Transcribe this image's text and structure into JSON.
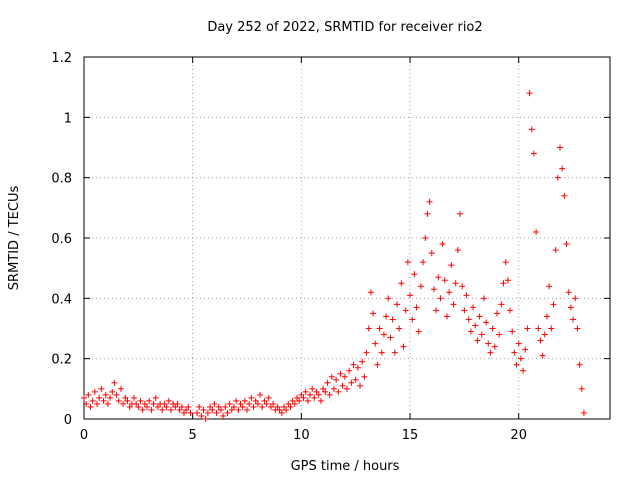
{
  "chart_data": {
    "type": "scatter",
    "title": "Day 252 of 2022, SRMTID for receiver rio2",
    "xlabel": "GPS time / hours",
    "ylabel": "SRMTID / TECUs",
    "xlim": [
      0,
      24.2
    ],
    "ylim": [
      0,
      1.2
    ],
    "x_ticks": [
      0,
      5,
      10,
      15,
      20
    ],
    "x_tick_labels": [
      "0",
      "5",
      "10",
      "15",
      "20"
    ],
    "y_ticks": [
      0,
      0.2,
      0.4,
      0.6,
      0.8,
      1.0,
      1.2
    ],
    "y_tick_labels": [
      "0",
      "0.2",
      "0.4",
      "0.6",
      "0.8",
      "1",
      "1.2"
    ],
    "grid": true,
    "marker": "+",
    "marker_color": "#ff0000",
    "series": [
      {
        "name": "SRMTID",
        "points": [
          [
            0.0,
            0.07
          ],
          [
            0.1,
            0.05
          ],
          [
            0.2,
            0.08
          ],
          [
            0.3,
            0.04
          ],
          [
            0.4,
            0.06
          ],
          [
            0.5,
            0.09
          ],
          [
            0.6,
            0.05
          ],
          [
            0.7,
            0.07
          ],
          [
            0.8,
            0.1
          ],
          [
            0.9,
            0.06
          ],
          [
            1.0,
            0.08
          ],
          [
            1.1,
            0.05
          ],
          [
            1.2,
            0.07
          ],
          [
            1.3,
            0.09
          ],
          [
            1.4,
            0.12
          ],
          [
            1.5,
            0.08
          ],
          [
            1.6,
            0.06
          ],
          [
            1.7,
            0.1
          ],
          [
            1.8,
            0.05
          ],
          [
            1.9,
            0.07
          ],
          [
            2.0,
            0.06
          ],
          [
            2.1,
            0.04
          ],
          [
            2.2,
            0.05
          ],
          [
            2.3,
            0.07
          ],
          [
            2.4,
            0.05
          ],
          [
            2.5,
            0.04
          ],
          [
            2.6,
            0.06
          ],
          [
            2.7,
            0.03
          ],
          [
            2.8,
            0.05
          ],
          [
            2.9,
            0.04
          ],
          [
            3.0,
            0.06
          ],
          [
            3.1,
            0.03
          ],
          [
            3.2,
            0.05
          ],
          [
            3.3,
            0.07
          ],
          [
            3.4,
            0.04
          ],
          [
            3.5,
            0.05
          ],
          [
            3.6,
            0.03
          ],
          [
            3.7,
            0.05
          ],
          [
            3.8,
            0.04
          ],
          [
            3.9,
            0.06
          ],
          [
            4.0,
            0.03
          ],
          [
            4.1,
            0.05
          ],
          [
            4.2,
            0.04
          ],
          [
            4.3,
            0.05
          ],
          [
            4.4,
            0.03
          ],
          [
            4.5,
            0.04
          ],
          [
            4.6,
            0.02
          ],
          [
            4.7,
            0.03
          ],
          [
            4.8,
            0.04
          ],
          [
            4.9,
            0.02
          ],
          [
            5.2,
            0.02
          ],
          [
            5.3,
            0.04
          ],
          [
            5.4,
            0.01
          ],
          [
            5.5,
            0.03
          ],
          [
            5.6,
            0.0
          ],
          [
            5.7,
            0.02
          ],
          [
            5.8,
            0.04
          ],
          [
            5.9,
            0.03
          ],
          [
            6.0,
            0.05
          ],
          [
            6.1,
            0.02
          ],
          [
            6.2,
            0.04
          ],
          [
            6.3,
            0.03
          ],
          [
            6.4,
            0.01
          ],
          [
            6.5,
            0.04
          ],
          [
            6.6,
            0.02
          ],
          [
            6.7,
            0.05
          ],
          [
            6.8,
            0.03
          ],
          [
            6.9,
            0.04
          ],
          [
            7.0,
            0.06
          ],
          [
            7.1,
            0.03
          ],
          [
            7.2,
            0.05
          ],
          [
            7.3,
            0.04
          ],
          [
            7.4,
            0.06
          ],
          [
            7.5,
            0.03
          ],
          [
            7.6,
            0.05
          ],
          [
            7.7,
            0.07
          ],
          [
            7.8,
            0.04
          ],
          [
            7.9,
            0.06
          ],
          [
            8.0,
            0.05
          ],
          [
            8.1,
            0.08
          ],
          [
            8.2,
            0.04
          ],
          [
            8.3,
            0.06
          ],
          [
            8.4,
            0.05
          ],
          [
            8.5,
            0.07
          ],
          [
            8.6,
            0.04
          ],
          [
            8.7,
            0.05
          ],
          [
            8.8,
            0.03
          ],
          [
            8.9,
            0.04
          ],
          [
            9.0,
            0.03
          ],
          [
            9.1,
            0.02
          ],
          [
            9.2,
            0.04
          ],
          [
            9.3,
            0.03
          ],
          [
            9.4,
            0.05
          ],
          [
            9.5,
            0.04
          ],
          [
            9.6,
            0.06
          ],
          [
            9.7,
            0.05
          ],
          [
            9.8,
            0.07
          ],
          [
            9.9,
            0.06
          ],
          [
            10.0,
            0.08
          ],
          [
            10.1,
            0.07
          ],
          [
            10.2,
            0.09
          ],
          [
            10.3,
            0.06
          ],
          [
            10.4,
            0.08
          ],
          [
            10.5,
            0.1
          ],
          [
            10.6,
            0.07
          ],
          [
            10.7,
            0.09
          ],
          [
            10.8,
            0.08
          ],
          [
            10.9,
            0.06
          ],
          [
            11.0,
            0.1
          ],
          [
            11.1,
            0.09
          ],
          [
            11.2,
            0.12
          ],
          [
            11.3,
            0.08
          ],
          [
            11.4,
            0.14
          ],
          [
            11.5,
            0.1
          ],
          [
            11.6,
            0.13
          ],
          [
            11.7,
            0.09
          ],
          [
            11.8,
            0.15
          ],
          [
            11.9,
            0.11
          ],
          [
            12.0,
            0.14
          ],
          [
            12.1,
            0.1
          ],
          [
            12.2,
            0.16
          ],
          [
            12.3,
            0.12
          ],
          [
            12.4,
            0.18
          ],
          [
            12.5,
            0.13
          ],
          [
            12.6,
            0.17
          ],
          [
            12.7,
            0.11
          ],
          [
            12.8,
            0.19
          ],
          [
            12.9,
            0.14
          ],
          [
            13.0,
            0.22
          ],
          [
            13.1,
            0.3
          ],
          [
            13.2,
            0.42
          ],
          [
            13.3,
            0.35
          ],
          [
            13.4,
            0.25
          ],
          [
            13.5,
            0.18
          ],
          [
            13.6,
            0.3
          ],
          [
            13.7,
            0.22
          ],
          [
            13.8,
            0.28
          ],
          [
            13.9,
            0.34
          ],
          [
            14.0,
            0.4
          ],
          [
            14.1,
            0.27
          ],
          [
            14.2,
            0.33
          ],
          [
            14.3,
            0.22
          ],
          [
            14.4,
            0.38
          ],
          [
            14.5,
            0.3
          ],
          [
            14.6,
            0.45
          ],
          [
            14.7,
            0.24
          ],
          [
            14.8,
            0.36
          ],
          [
            14.9,
            0.52
          ],
          [
            15.0,
            0.41
          ],
          [
            15.1,
            0.33
          ],
          [
            15.2,
            0.48
          ],
          [
            15.3,
            0.37
          ],
          [
            15.4,
            0.29
          ],
          [
            15.5,
            0.44
          ],
          [
            15.6,
            0.52
          ],
          [
            15.7,
            0.6
          ],
          [
            15.8,
            0.68
          ],
          [
            15.9,
            0.72
          ],
          [
            16.0,
            0.55
          ],
          [
            16.1,
            0.43
          ],
          [
            16.2,
            0.36
          ],
          [
            16.3,
            0.47
          ],
          [
            16.4,
            0.4
          ],
          [
            16.5,
            0.58
          ],
          [
            16.6,
            0.46
          ],
          [
            16.7,
            0.34
          ],
          [
            16.8,
            0.42
          ],
          [
            16.9,
            0.51
          ],
          [
            17.0,
            0.38
          ],
          [
            17.1,
            0.45
          ],
          [
            17.2,
            0.56
          ],
          [
            17.3,
            0.68
          ],
          [
            17.4,
            0.44
          ],
          [
            17.5,
            0.36
          ],
          [
            17.6,
            0.41
          ],
          [
            17.7,
            0.33
          ],
          [
            17.8,
            0.29
          ],
          [
            17.9,
            0.37
          ],
          [
            18.0,
            0.31
          ],
          [
            18.1,
            0.26
          ],
          [
            18.2,
            0.34
          ],
          [
            18.3,
            0.28
          ],
          [
            18.4,
            0.4
          ],
          [
            18.5,
            0.32
          ],
          [
            18.6,
            0.25
          ],
          [
            18.7,
            0.22
          ],
          [
            18.8,
            0.3
          ],
          [
            18.9,
            0.24
          ],
          [
            19.0,
            0.35
          ],
          [
            19.1,
            0.28
          ],
          [
            19.2,
            0.38
          ],
          [
            19.3,
            0.45
          ],
          [
            19.4,
            0.52
          ],
          [
            19.5,
            0.46
          ],
          [
            19.6,
            0.36
          ],
          [
            19.7,
            0.29
          ],
          [
            19.8,
            0.22
          ],
          [
            19.9,
            0.18
          ],
          [
            20.0,
            0.25
          ],
          [
            20.1,
            0.2
          ],
          [
            20.2,
            0.16
          ],
          [
            20.3,
            0.23
          ],
          [
            20.4,
            0.3
          ],
          [
            20.5,
            1.08
          ],
          [
            20.6,
            0.96
          ],
          [
            20.7,
            0.88
          ],
          [
            20.8,
            0.62
          ],
          [
            20.9,
            0.3
          ],
          [
            21.0,
            0.26
          ],
          [
            21.1,
            0.21
          ],
          [
            21.2,
            0.28
          ],
          [
            21.3,
            0.34
          ],
          [
            21.4,
            0.44
          ],
          [
            21.5,
            0.3
          ],
          [
            21.6,
            0.38
          ],
          [
            21.7,
            0.56
          ],
          [
            21.8,
            0.8
          ],
          [
            21.9,
            0.9
          ],
          [
            22.0,
            0.83
          ],
          [
            22.1,
            0.74
          ],
          [
            22.2,
            0.58
          ],
          [
            22.3,
            0.42
          ],
          [
            22.4,
            0.37
          ],
          [
            22.5,
            0.33
          ],
          [
            22.6,
            0.4
          ],
          [
            22.7,
            0.3
          ],
          [
            22.8,
            0.18
          ],
          [
            22.9,
            0.1
          ],
          [
            23.0,
            0.02
          ]
        ]
      }
    ]
  }
}
